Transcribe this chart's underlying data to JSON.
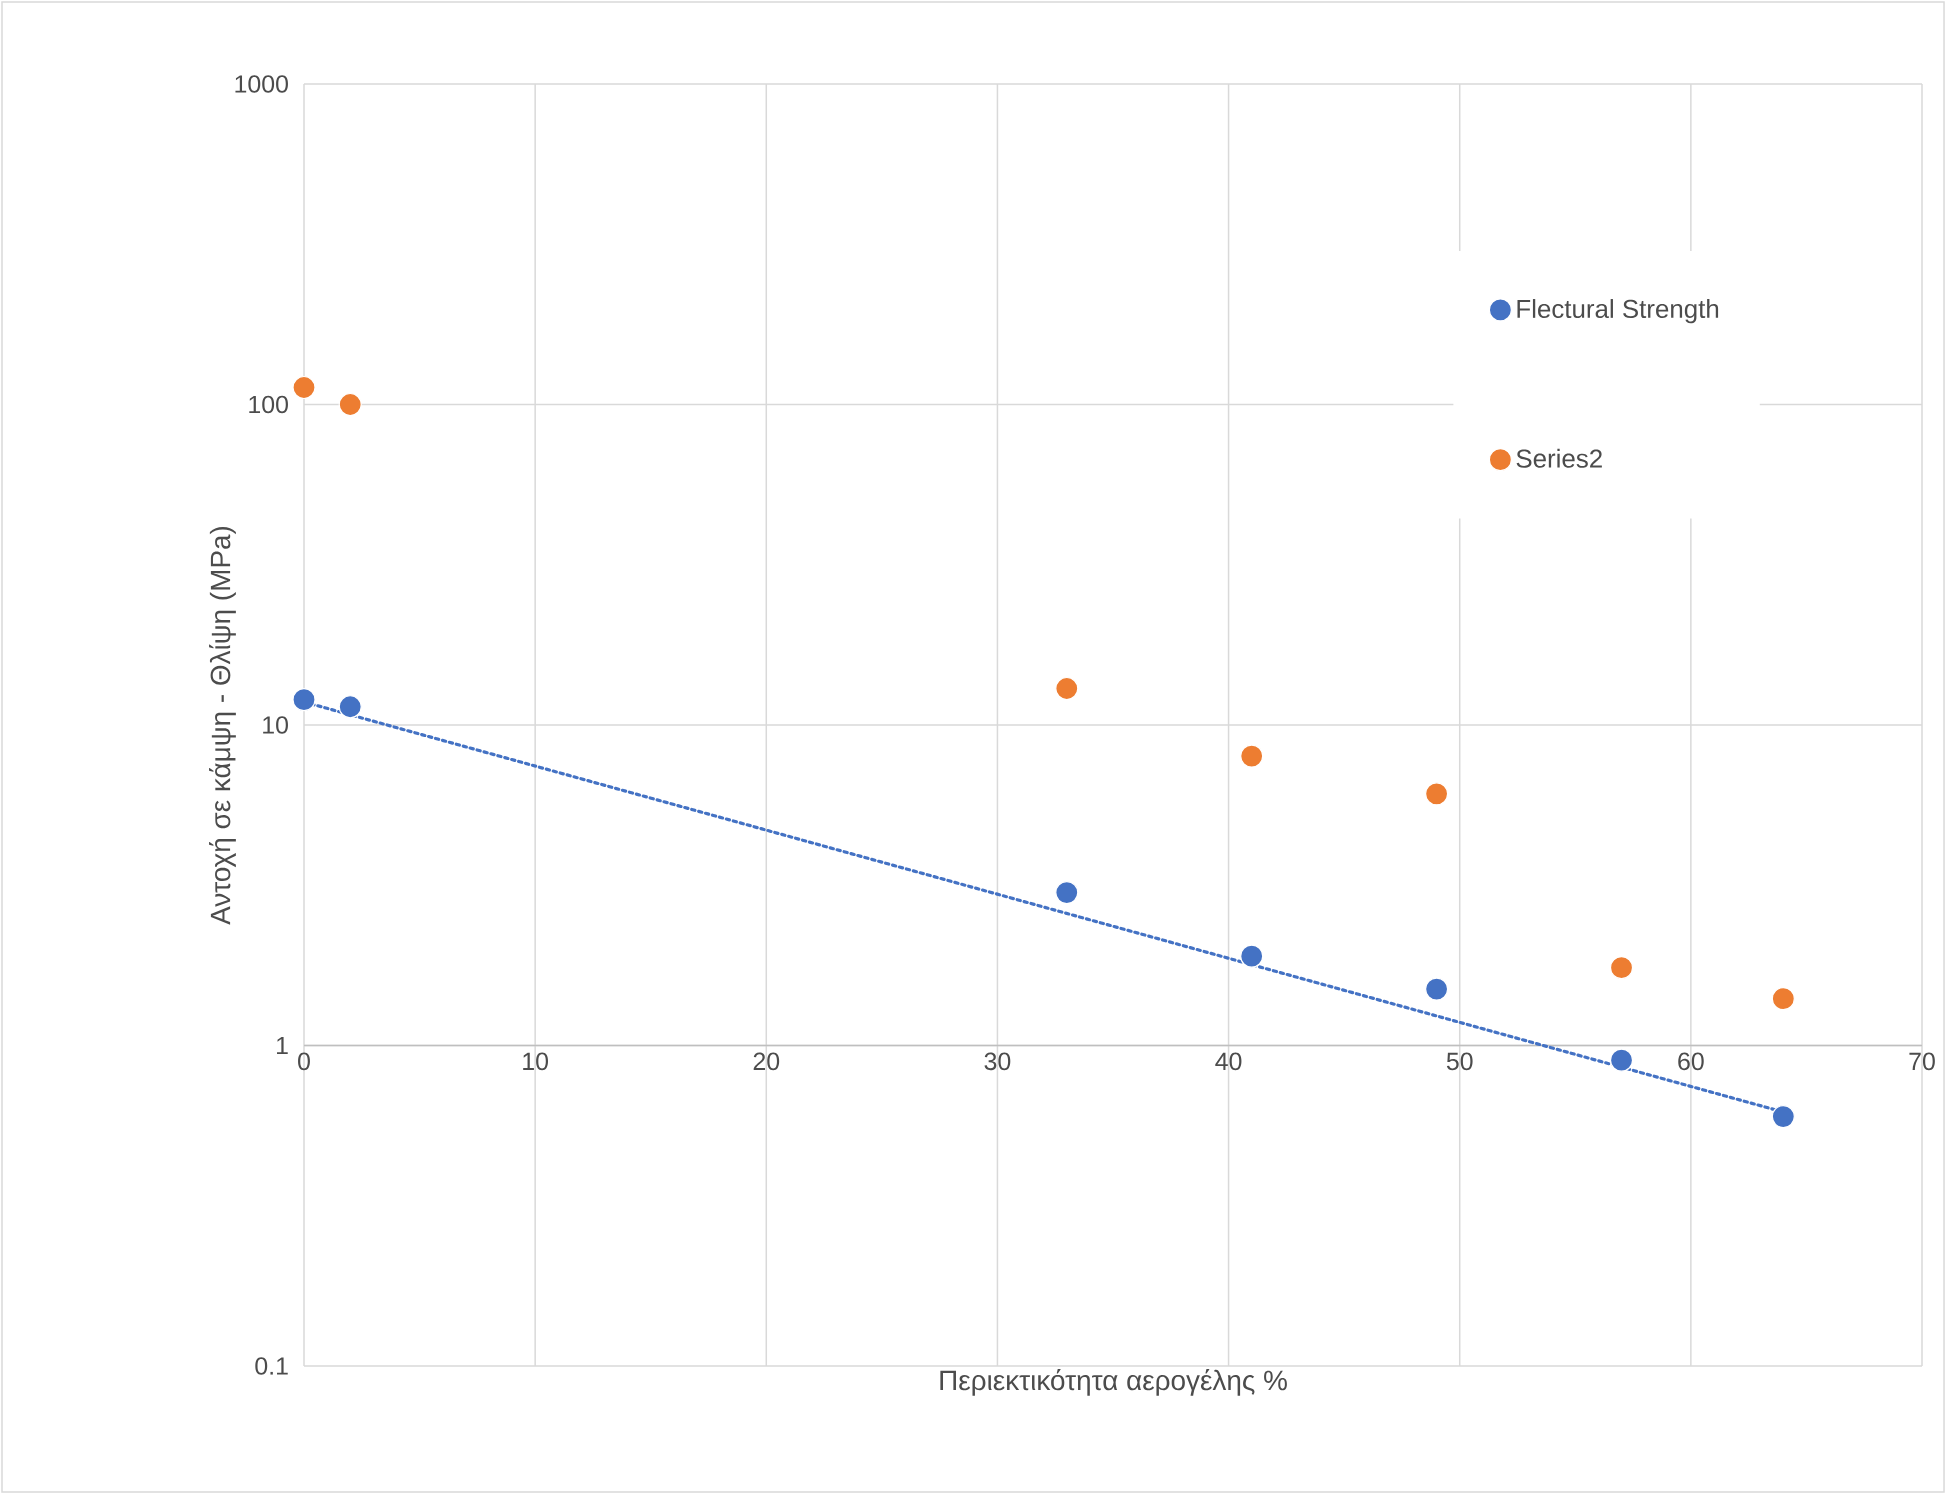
{
  "chart_data": {
    "type": "scatter",
    "xlabel": "Περιεκτικότητα αερογέλης %",
    "ylabel": "Αντοχή σε κάμψη - Θλίψη (MPa)",
    "xlim": [
      0,
      70
    ],
    "xticks": [
      0,
      10,
      20,
      30,
      40,
      50,
      60,
      70
    ],
    "ylim": [
      0.1,
      1000
    ],
    "yticks": [
      0.1,
      1,
      10,
      100,
      1000
    ],
    "log": "y",
    "grid": true,
    "legend": "top right",
    "x": [
      0,
      2,
      33,
      41,
      49,
      57,
      64
    ],
    "series": [
      {
        "name": "Flectural Strength",
        "color": "#4472c4",
        "marker": "circle",
        "values": [
          12,
          11.4,
          3,
          1.9,
          1.5,
          0.9,
          0.6
        ]
      },
      {
        "name": "Series2",
        "color": "#ed7d31",
        "marker": "circle",
        "values": [
          113,
          100,
          13,
          8,
          6.1,
          1.75,
          1.4
        ]
      },
      {
        "type": "line",
        "color": "#4472c4",
        "line_style": "dotted",
        "marker": "none",
        "x": [
          0,
          64
        ],
        "values": [
          11.8,
          0.62
        ]
      }
    ]
  }
}
